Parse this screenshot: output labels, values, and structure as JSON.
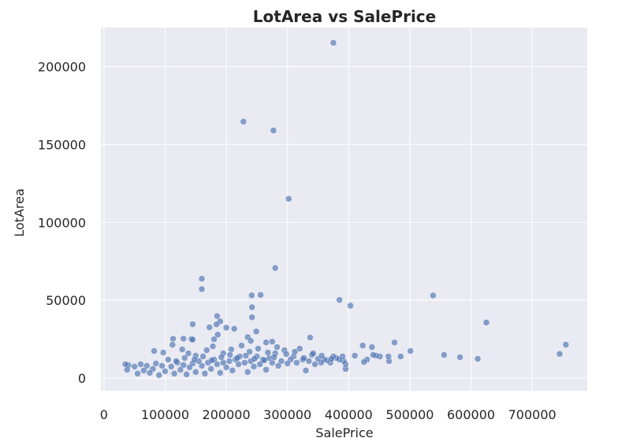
{
  "chart_data": {
    "type": "scatter",
    "title": "LotArea vs SalePrice",
    "xlabel": "SalePrice",
    "ylabel": "LotArea",
    "xlim": [
      -5000,
      790000
    ],
    "ylim": [
      -8000,
      225000
    ],
    "xticks": [
      0,
      100000,
      200000,
      300000,
      400000,
      500000,
      600000,
      700000
    ],
    "yticks": [
      0,
      50000,
      100000,
      150000,
      200000
    ],
    "grid": true,
    "colors": {
      "point": "#4c72b0",
      "background": "#eaeaf2",
      "grid": "#ffffff"
    },
    "points": [
      [
        375000,
        215245
      ],
      [
        228000,
        164660
      ],
      [
        277000,
        159000
      ],
      [
        302000,
        115149
      ],
      [
        280000,
        70761
      ],
      [
        160000,
        63887
      ],
      [
        160000,
        57200
      ],
      [
        241500,
        53227
      ],
      [
        256000,
        53504
      ],
      [
        538000,
        53107
      ],
      [
        385000,
        50271
      ],
      [
        403000,
        46589
      ],
      [
        242000,
        45600
      ],
      [
        185000,
        39900
      ],
      [
        242000,
        39104
      ],
      [
        190000,
        36500
      ],
      [
        625000,
        35760
      ],
      [
        145000,
        34650
      ],
      [
        184000,
        34600
      ],
      [
        172500,
        32668
      ],
      [
        213000,
        31770
      ],
      [
        200000,
        32463
      ],
      [
        249000,
        30000
      ],
      [
        186000,
        28000
      ],
      [
        235000,
        26400
      ],
      [
        337000,
        26142
      ],
      [
        130000,
        25419
      ],
      [
        113000,
        25339
      ],
      [
        143000,
        25095
      ],
      [
        145000,
        24800
      ],
      [
        180000,
        25000
      ],
      [
        240000,
        24000
      ],
      [
        265000,
        23000
      ],
      [
        275000,
        23500
      ],
      [
        475000,
        22950
      ],
      [
        755000,
        21535
      ],
      [
        745000,
        15623
      ],
      [
        611000,
        12500
      ],
      [
        582000,
        13500
      ],
      [
        556000,
        15000
      ],
      [
        501000,
        17500
      ],
      [
        485000,
        14000
      ],
      [
        466000,
        11000
      ],
      [
        465000,
        14000
      ],
      [
        451000,
        14000
      ],
      [
        445000,
        14500
      ],
      [
        440000,
        15000
      ],
      [
        438000,
        20000
      ],
      [
        430000,
        12000
      ],
      [
        425000,
        10500
      ],
      [
        423000,
        21000
      ],
      [
        410000,
        14500
      ],
      [
        395000,
        6000
      ],
      [
        395000,
        9000
      ],
      [
        392000,
        11000
      ],
      [
        390000,
        14000
      ],
      [
        385000,
        12000
      ],
      [
        380000,
        13000
      ],
      [
        375000,
        14000
      ],
      [
        370000,
        10000
      ],
      [
        365000,
        11500
      ],
      [
        360000,
        12000
      ],
      [
        355000,
        10000
      ],
      [
        350000,
        12500
      ],
      [
        345000,
        9000
      ],
      [
        340000,
        15000
      ],
      [
        335000,
        11000
      ],
      [
        330000,
        5000
      ],
      [
        325000,
        12000
      ],
      [
        320000,
        19000
      ],
      [
        315000,
        10000
      ],
      [
        310000,
        14000
      ],
      [
        305000,
        12000
      ],
      [
        300000,
        9500
      ],
      [
        295000,
        18000
      ],
      [
        290000,
        11000
      ],
      [
        285000,
        8000
      ],
      [
        280000,
        16000
      ],
      [
        275000,
        10000
      ],
      [
        270000,
        13000
      ],
      [
        265000,
        5500
      ],
      [
        260000,
        12000
      ],
      [
        255000,
        9000
      ],
      [
        250000,
        14000
      ],
      [
        245000,
        7500
      ],
      [
        240000,
        11000
      ],
      [
        235000,
        4000
      ],
      [
        230000,
        10000
      ],
      [
        225000,
        21000
      ],
      [
        220000,
        9000
      ],
      [
        215000,
        12000
      ],
      [
        210000,
        5000
      ],
      [
        205000,
        11000
      ],
      [
        200000,
        7000
      ],
      [
        195000,
        10000
      ],
      [
        190000,
        3500
      ],
      [
        185000,
        9000
      ],
      [
        180000,
        12000
      ],
      [
        175000,
        6000
      ],
      [
        170000,
        10000
      ],
      [
        165000,
        3000
      ],
      [
        160000,
        8000
      ],
      [
        155000,
        11000
      ],
      [
        150000,
        4000
      ],
      [
        145000,
        9500
      ],
      [
        140000,
        7000
      ],
      [
        135000,
        2500
      ],
      [
        130000,
        8500
      ],
      [
        125000,
        5500
      ],
      [
        120000,
        10000
      ],
      [
        115000,
        3000
      ],
      [
        110000,
        7500
      ],
      [
        105000,
        12000
      ],
      [
        100000,
        4500
      ],
      [
        95000,
        8000
      ],
      [
        90000,
        2000
      ],
      [
        85000,
        9500
      ],
      [
        80000,
        6000
      ],
      [
        75000,
        3500
      ],
      [
        70000,
        8000
      ],
      [
        65000,
        5000
      ],
      [
        60000,
        9000
      ],
      [
        55000,
        3000
      ],
      [
        50000,
        7500
      ],
      [
        40000,
        8400
      ],
      [
        38000,
        5500
      ],
      [
        35000,
        9000
      ],
      [
        82000,
        17500
      ],
      [
        97000,
        16500
      ],
      [
        112000,
        21500
      ],
      [
        128000,
        18500
      ],
      [
        138000,
        16000
      ],
      [
        150000,
        14500
      ],
      [
        168000,
        18000
      ],
      [
        178000,
        20500
      ],
      [
        195000,
        16000
      ],
      [
        208000,
        18500
      ],
      [
        222000,
        14000
      ],
      [
        238000,
        17000
      ],
      [
        252000,
        19000
      ],
      [
        268000,
        16500
      ],
      [
        283000,
        20000
      ],
      [
        298000,
        15500
      ],
      [
        312000,
        17000
      ],
      [
        327000,
        13000
      ],
      [
        342000,
        16000
      ],
      [
        356000,
        14500
      ],
      [
        372000,
        12500
      ],
      [
        118000,
        11000
      ],
      [
        132000,
        13000
      ],
      [
        148000,
        12000
      ],
      [
        162000,
        14000
      ],
      [
        176000,
        11500
      ],
      [
        192000,
        13500
      ],
      [
        206000,
        15000
      ],
      [
        218000,
        13000
      ],
      [
        232000,
        14500
      ],
      [
        246000,
        12500
      ],
      [
        262000,
        11500
      ],
      [
        278000,
        13500
      ]
    ]
  }
}
